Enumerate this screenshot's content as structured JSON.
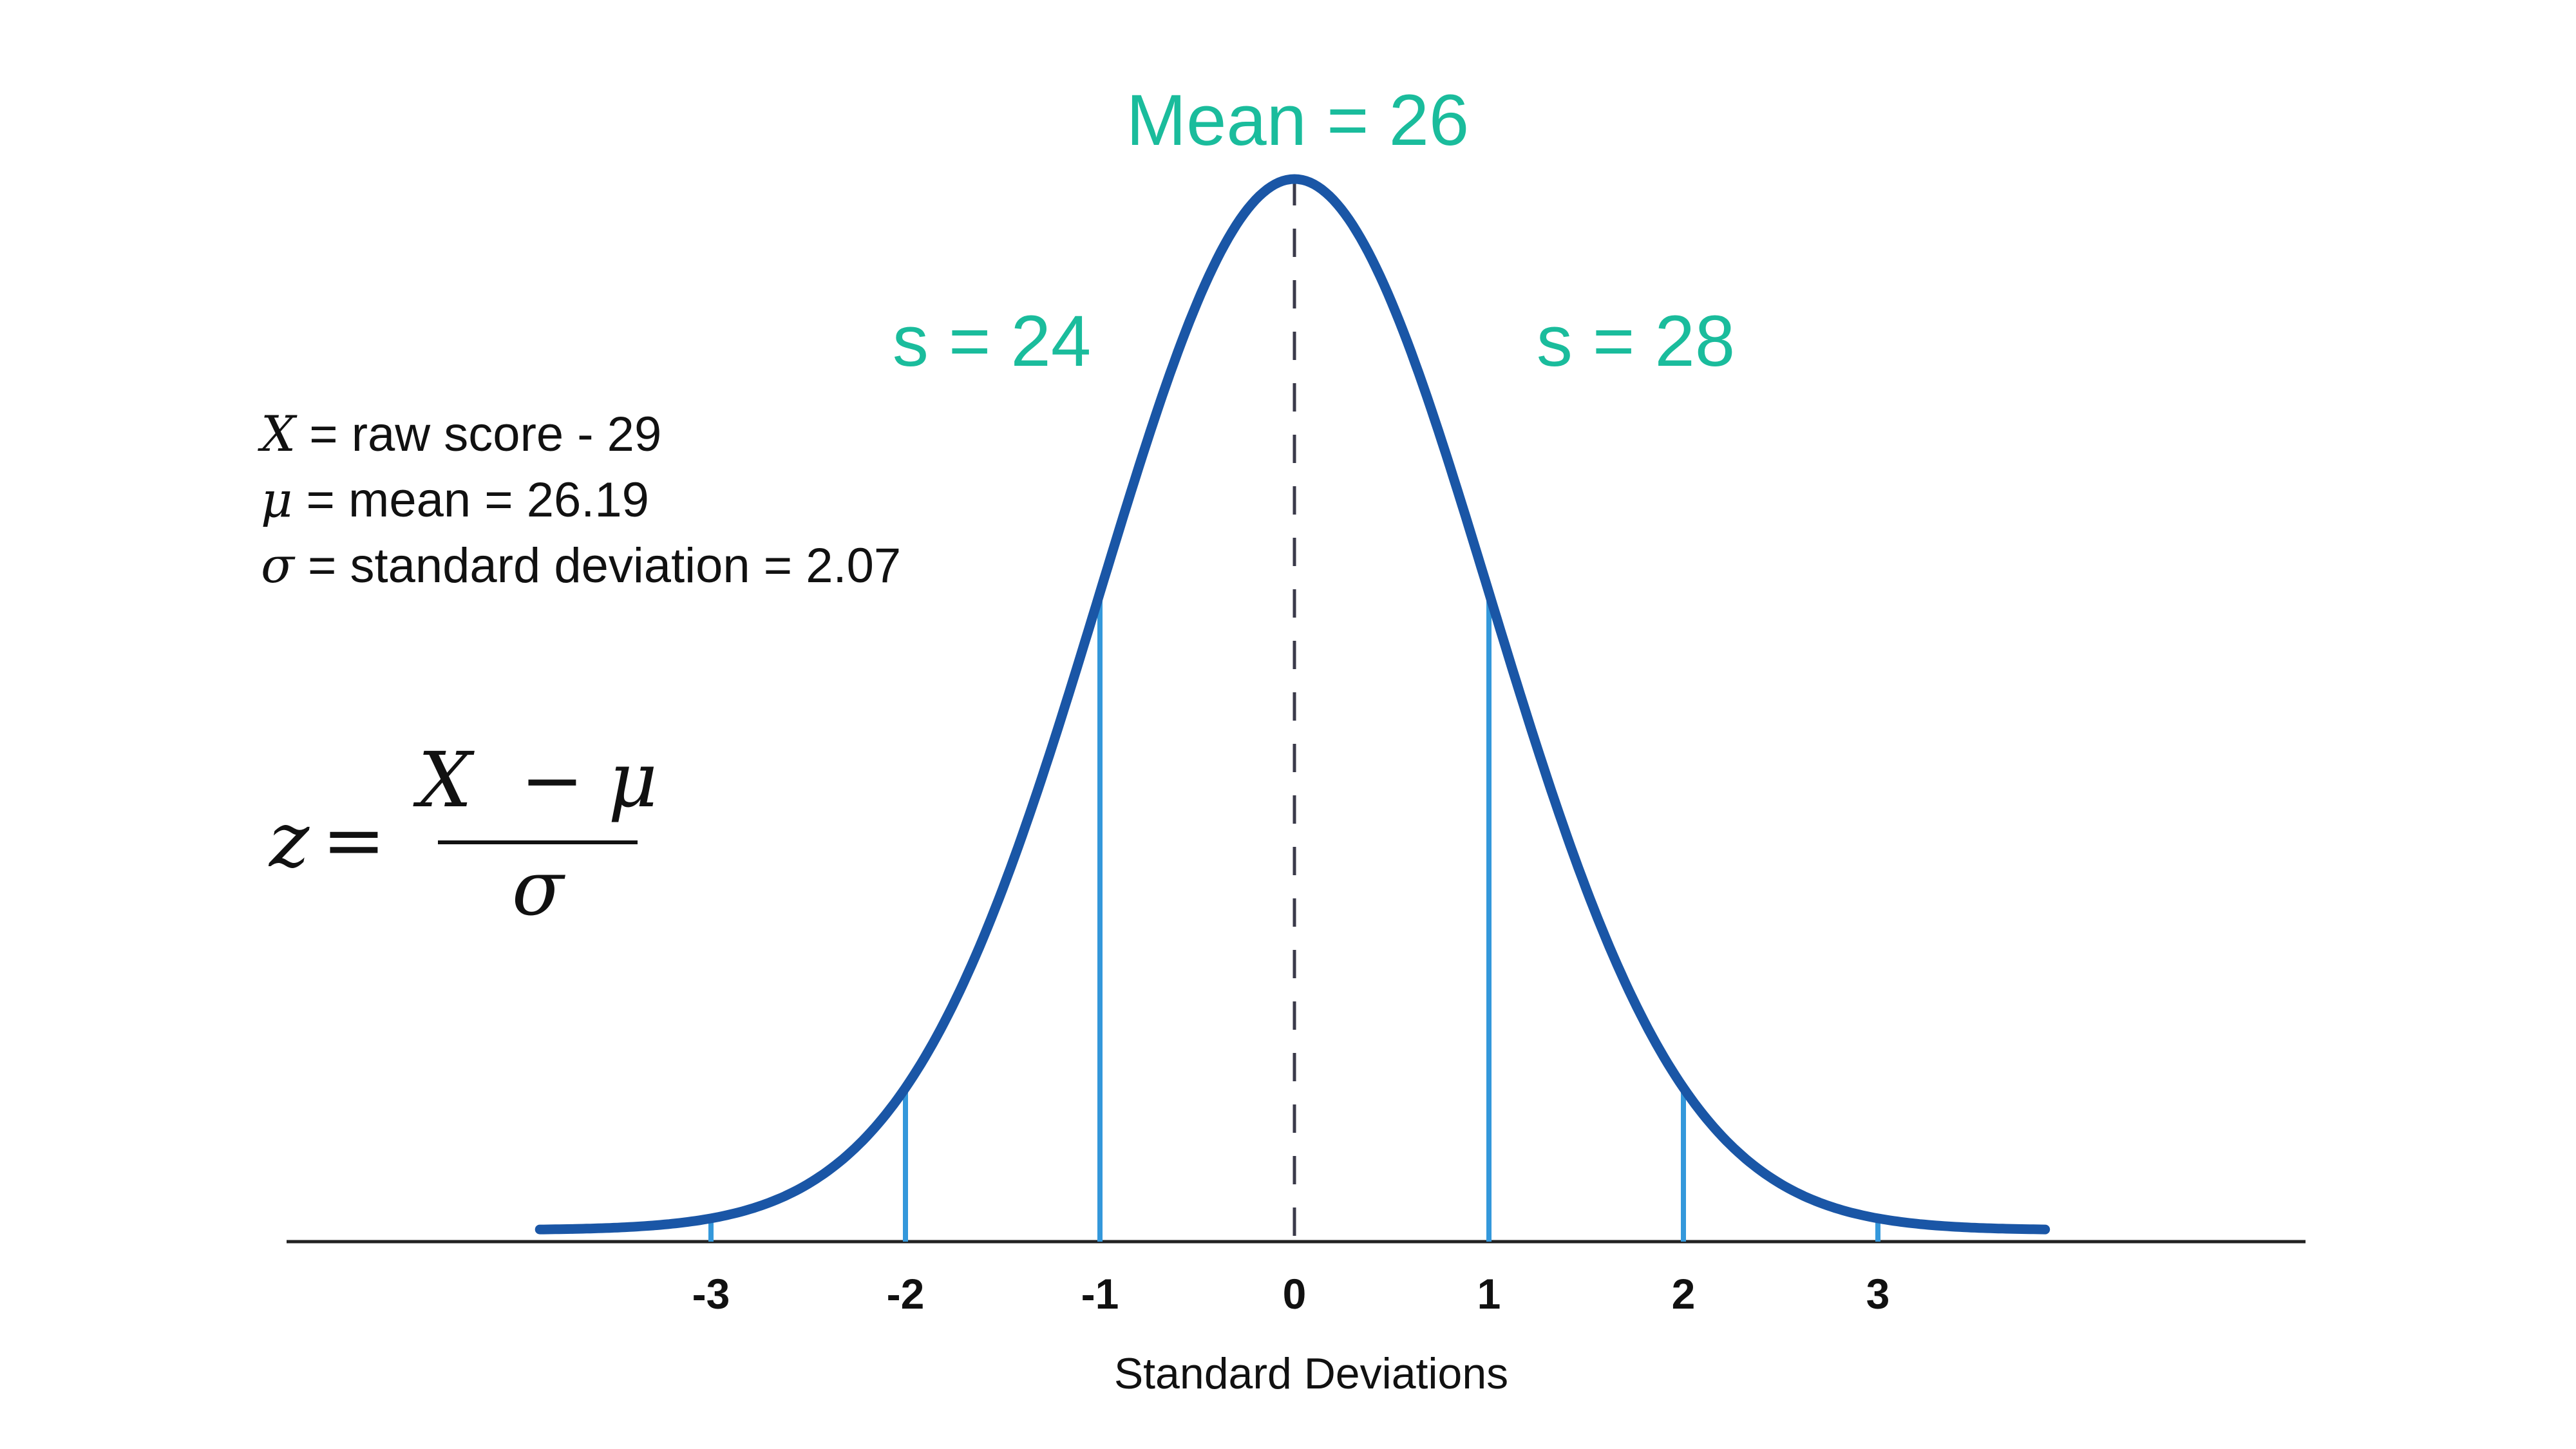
{
  "colors": {
    "curve": "#1a56a6",
    "sd_lines": "#3498db",
    "annotation": "#1abc9c",
    "axis": "#222222",
    "mean_line": "#3a3a4a"
  },
  "annotations": {
    "mean": "Mean = 26",
    "left_sd": "s = 24",
    "right_sd": "s = 28"
  },
  "legend": {
    "x_symbol": "X",
    "x_text": " = raw score - 29",
    "mu_symbol": "μ",
    "mu_text": " = mean = 26.19",
    "sigma_symbol": "σ",
    "sigma_text": " = standard deviation = 2.07"
  },
  "formula": {
    "lhs": "z",
    "equals": "=",
    "numerator": "X  − μ",
    "denominator": "σ"
  },
  "chart_data": {
    "type": "line",
    "xlabel": "Standard Deviations",
    "x_ticks": [
      -3,
      -2,
      -1,
      0,
      1,
      2,
      3
    ],
    "x_tick_labels": [
      "-3",
      "-2",
      "-1",
      "0",
      "1",
      "2",
      "3"
    ],
    "sd_markers": [
      -3,
      -2,
      -1,
      1,
      2,
      3
    ],
    "mean_marker": 0
  }
}
